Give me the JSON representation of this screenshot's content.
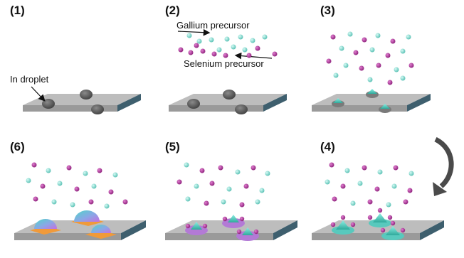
{
  "panels": [
    {
      "id": "1",
      "label": "(1)",
      "annotation": "In droplet"
    },
    {
      "id": "2",
      "label": "(2)",
      "gallium_label": "Gallium precursor",
      "selenium_label": "Selenium precursor"
    },
    {
      "id": "3",
      "label": "(3)"
    },
    {
      "id": "4",
      "label": "(4)"
    },
    {
      "id": "5",
      "label": "(5)"
    },
    {
      "id": "6",
      "label": "(6)"
    }
  ],
  "process_arrow_icon": "curved-arrow-icon",
  "colors": {
    "substrate_top": "#bdbdbd",
    "substrate_front": "#9a9a9a",
    "substrate_side": "#3e5f6e",
    "droplet": "#5e5e5e",
    "gallium_atom": "#7fd6cc",
    "selenium_atom": "#b0399a",
    "crystal": "#58c9bd",
    "nanosheet_purple": "#b37ad6",
    "orange_film": "#f09a3a"
  }
}
